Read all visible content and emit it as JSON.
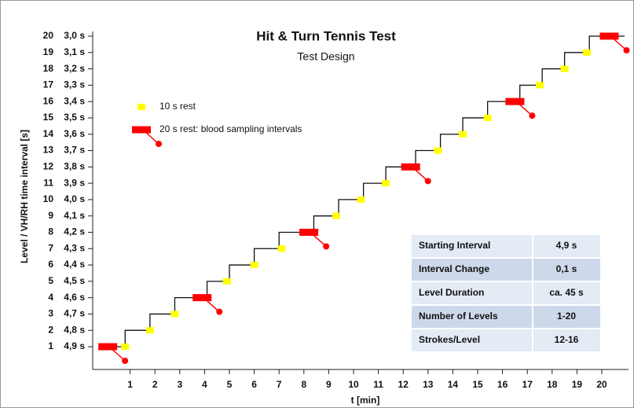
{
  "chart_data": {
    "type": "step",
    "title": "Hit & Turn Tennis Test",
    "subtitle": "Test Design",
    "y_label": "Level / VH/RH time interval [s]",
    "x_label": "t [min]",
    "xlim": [
      0,
      20
    ],
    "xticks": [
      1,
      2,
      3,
      4,
      5,
      6,
      7,
      8,
      9,
      10,
      11,
      12,
      13,
      14,
      15,
      16,
      17,
      18,
      19,
      20
    ],
    "ylim": [
      1,
      20
    ],
    "yticks": [
      1,
      2,
      3,
      4,
      5,
      6,
      7,
      8,
      9,
      10,
      11,
      12,
      13,
      14,
      15,
      16,
      17,
      18,
      19,
      20
    ],
    "y_interval_labels": [
      "4,9 s",
      "4,8 s",
      "4,7 s",
      "4,6 s",
      "4,5 s",
      "4,4 s",
      "4,3 s",
      "4,2 s",
      "4,1 s",
      "4,0 s",
      "3,9 s",
      "3,8 s",
      "3,7 s",
      "3,6 s",
      "3,5 s",
      "3,4 s",
      "3,3 s",
      "3,2 s",
      "3,1 s",
      "3,0 s"
    ],
    "series": [
      {
        "color": "#111111",
        "x": [
          0,
          0.8,
          1.8,
          2.8,
          4.1,
          5.0,
          6.0,
          7.0,
          8.4,
          9.4,
          10.4,
          11.3,
          12.5,
          13.5,
          14.4,
          15.4,
          16.7,
          17.6,
          18.5,
          19.5
        ],
        "values": [
          1,
          2,
          3,
          4,
          5,
          6,
          7,
          8,
          9,
          10,
          11,
          12,
          13,
          14,
          15,
          16,
          17,
          18,
          19,
          20
        ]
      },
      {
        "name": "10 s rest",
        "color": "#ffff00",
        "x": [
          0.8,
          1.8,
          2.8,
          4.9,
          6.0,
          7.1,
          9.3,
          10.3,
          11.3,
          13.4,
          14.4,
          15.4,
          17.5,
          18.5,
          19.4
        ],
        "values": [
          1,
          2,
          3,
          5,
          6,
          7,
          9,
          10,
          11,
          13,
          14,
          15,
          17,
          18,
          19
        ]
      },
      {
        "name": "20 s rest: blood sampling intervals",
        "color": "#ff0000",
        "x": [
          0.1,
          3.9,
          8.2,
          12.3,
          16.5,
          20.3
        ],
        "values": [
          1,
          4,
          8,
          12,
          16,
          20
        ]
      }
    ],
    "table": [
      [
        "Starting Interval",
        "4,9 s"
      ],
      [
        "Interval Change",
        "0,1 s"
      ],
      [
        "Level Duration",
        "ca. 45 s"
      ],
      [
        "Number of Levels",
        "1-20"
      ],
      [
        "Strokes/Level",
        "12-16"
      ]
    ]
  }
}
